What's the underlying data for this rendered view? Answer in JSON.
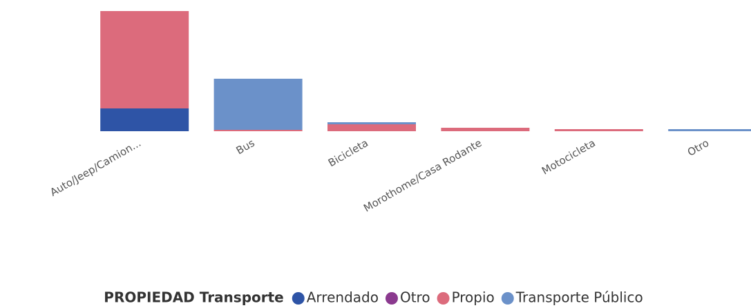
{
  "chart_data": {
    "type": "bar",
    "stacked": true,
    "categories": [
      "Auto/Jeep/Camion...",
      "Bus",
      "Bicicleta",
      "Morothome/Casa Rodante",
      "Motocicleta",
      "Otro"
    ],
    "legend_title": "PROPIEDAD Transporte",
    "series": [
      {
        "name": "Arrendado",
        "color": "#2e54a6",
        "values": [
          33,
          0,
          0,
          0,
          0,
          0
        ]
      },
      {
        "name": "Otro",
        "color": "#8b3a8f",
        "values": [
          0,
          0,
          0,
          0,
          0,
          0
        ]
      },
      {
        "name": "Propio",
        "color": "#dc6b7c",
        "values": [
          141,
          2,
          10,
          5,
          3,
          0
        ]
      },
      {
        "name": "Transporte Público",
        "color": "#6b91c9",
        "values": [
          0,
          74,
          3,
          0,
          0,
          3
        ]
      }
    ],
    "ylim": [
      0,
      174
    ]
  }
}
